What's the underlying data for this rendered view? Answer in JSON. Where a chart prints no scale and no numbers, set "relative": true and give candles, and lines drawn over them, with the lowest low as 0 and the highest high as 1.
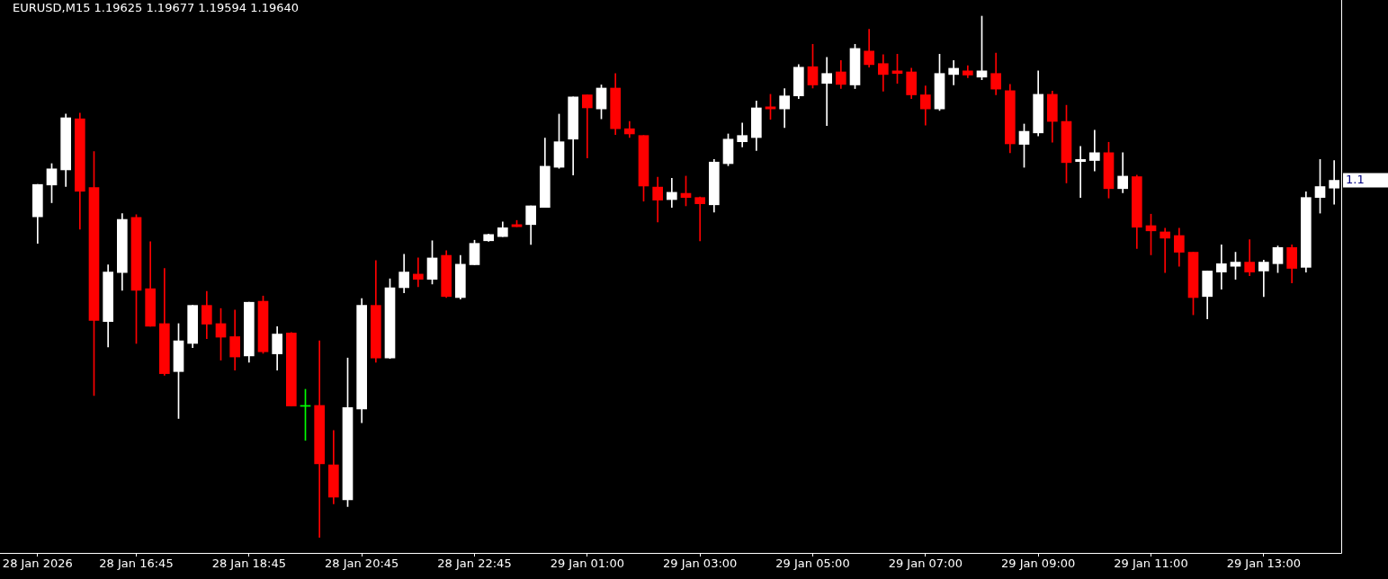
{
  "chart_data": {
    "type": "candlestick",
    "title": "EURUSD,M15 1.19625 1.19677 1.19594 1.19640",
    "relative": true,
    "categories": [
      "28 Jan 2026",
      null,
      null,
      null,
      null,
      null,
      null,
      "28 Jan 16:45",
      null,
      null,
      null,
      null,
      null,
      null,
      null,
      "28 Jan 18:45",
      null,
      null,
      null,
      null,
      null,
      null,
      null,
      "28 Jan 20:45",
      null,
      null,
      null,
      null,
      null,
      null,
      null,
      "28 Jan 22:45",
      null,
      null,
      null,
      null,
      null,
      null,
      null,
      "29 Jan 01:00",
      null,
      null,
      null,
      null,
      null,
      null,
      null,
      "29 Jan 03:00",
      null,
      null,
      null,
      null,
      null,
      null,
      null,
      "29 Jan 05:00",
      null,
      null,
      null,
      null,
      null,
      null,
      null,
      "29 Jan 07:00",
      null,
      null,
      null,
      null,
      null,
      null,
      null,
      "29 Jan 09:00",
      null,
      null,
      null,
      null,
      null,
      null,
      null,
      "29 Jan 11:00",
      null,
      null,
      null,
      null,
      null,
      null,
      null,
      "29 Jan 13:00",
      null,
      null,
      null,
      null,
      null
    ],
    "ohlc": [
      [
        0.615,
        0.677,
        0.564,
        0.677
      ],
      [
        0.676,
        0.717,
        0.642,
        0.707
      ],
      [
        0.705,
        0.812,
        0.673,
        0.805
      ],
      [
        0.803,
        0.814,
        0.591,
        0.664
      ],
      [
        0.671,
        0.74,
        0.272,
        0.416
      ],
      [
        0.414,
        0.523,
        0.365,
        0.509
      ],
      [
        0.508,
        0.621,
        0.474,
        0.61
      ],
      [
        0.614,
        0.619,
        0.372,
        0.474
      ],
      [
        0.477,
        0.567,
        0.405,
        0.405
      ],
      [
        0.41,
        0.516,
        0.311,
        0.314
      ],
      [
        0.318,
        0.41,
        0.228,
        0.377
      ],
      [
        0.372,
        0.445,
        0.364,
        0.445
      ],
      [
        0.445,
        0.472,
        0.381,
        0.409
      ],
      [
        0.41,
        0.439,
        0.34,
        0.384
      ],
      [
        0.385,
        0.436,
        0.321,
        0.346
      ],
      [
        0.348,
        0.451,
        0.336,
        0.451
      ],
      [
        0.453,
        0.463,
        0.353,
        0.356
      ],
      [
        0.352,
        0.404,
        0.321,
        0.39
      ],
      [
        0.392,
        0.393,
        0.252,
        0.252
      ],
      [
        0.253,
        0.284,
        0.186,
        0.253
      ],
      [
        0.253,
        0.377,
        0,
        0.141
      ],
      [
        0.139,
        0.205,
        0.064,
        0.077
      ],
      [
        0.072,
        0.344,
        0.059,
        0.249
      ],
      [
        0.246,
        0.458,
        0.22,
        0.445
      ],
      [
        0.445,
        0.531,
        0.336,
        0.344
      ],
      [
        0.344,
        0.496,
        0.343,
        0.479
      ],
      [
        0.479,
        0.543,
        0.469,
        0.509
      ],
      [
        0.505,
        0.536,
        0.481,
        0.495
      ],
      [
        0.495,
        0.569,
        0.486,
        0.536
      ],
      [
        0.541,
        0.55,
        0.46,
        0.462
      ],
      [
        0.46,
        0.541,
        0.457,
        0.524
      ],
      [
        0.523,
        0.57,
        0.523,
        0.564
      ],
      [
        0.569,
        0.582,
        0.568,
        0.581
      ],
      [
        0.577,
        0.605,
        0.577,
        0.594
      ],
      [
        0.6,
        0.608,
        0.596,
        0.596
      ],
      [
        0.6,
        0.636,
        0.562,
        0.636
      ],
      [
        0.633,
        0.766,
        0.633,
        0.712
      ],
      [
        0.71,
        0.812,
        0.708,
        0.759
      ],
      [
        0.764,
        0.845,
        0.695,
        0.845
      ],
      [
        0.849,
        0.849,
        0.728,
        0.824
      ],
      [
        0.822,
        0.868,
        0.803,
        0.862
      ],
      [
        0.862,
        0.89,
        0.773,
        0.784
      ],
      [
        0.784,
        0.798,
        0.767,
        0.774
      ],
      [
        0.771,
        0.771,
        0.645,
        0.674
      ],
      [
        0.672,
        0.691,
        0.605,
        0.647
      ],
      [
        0.648,
        0.689,
        0.633,
        0.662
      ],
      [
        0.66,
        0.693,
        0.636,
        0.652
      ],
      [
        0.652,
        0.653,
        0.569,
        0.64
      ],
      [
        0.638,
        0.725,
        0.624,
        0.72
      ],
      [
        0.717,
        0.774,
        0.713,
        0.764
      ],
      [
        0.759,
        0.795,
        0.749,
        0.771
      ],
      [
        0.767,
        0.837,
        0.742,
        0.824
      ],
      [
        0.826,
        0.85,
        0.802,
        0.822
      ],
      [
        0.822,
        0.861,
        0.786,
        0.847
      ],
      [
        0.847,
        0.907,
        0.842,
        0.902
      ],
      [
        0.903,
        0.946,
        0.862,
        0.868
      ],
      [
        0.871,
        0.921,
        0.79,
        0.89
      ],
      [
        0.893,
        0.915,
        0.861,
        0.869
      ],
      [
        0.868,
        0.946,
        0.861,
        0.938
      ],
      [
        0.933,
        0.975,
        0.902,
        0.907
      ],
      [
        0.909,
        0.926,
        0.856,
        0.888
      ],
      [
        0.895,
        0.927,
        0.871,
        0.89
      ],
      [
        0.893,
        0.9,
        0.842,
        0.849
      ],
      [
        0.849,
        0.866,
        0.791,
        0.822
      ],
      [
        0.822,
        0.927,
        0.819,
        0.89
      ],
      [
        0.888,
        0.915,
        0.868,
        0.9
      ],
      [
        0.895,
        0.905,
        0.882,
        0.887
      ],
      [
        0.883,
        1,
        0.878,
        0.895
      ],
      [
        0.89,
        0.929,
        0.849,
        0.86
      ],
      [
        0.857,
        0.869,
        0.738,
        0.755
      ],
      [
        0.754,
        0.793,
        0.71,
        0.779
      ],
      [
        0.776,
        0.895,
        0.77,
        0.85
      ],
      [
        0.85,
        0.856,
        0.758,
        0.798
      ],
      [
        0.798,
        0.829,
        0.68,
        0.719
      ],
      [
        0.721,
        0.75,
        0.652,
        0.725
      ],
      [
        0.723,
        0.781,
        0.703,
        0.738
      ],
      [
        0.738,
        0.758,
        0.651,
        0.669
      ],
      [
        0.669,
        0.738,
        0.661,
        0.693
      ],
      [
        0.692,
        0.695,
        0.554,
        0.595
      ],
      [
        0.598,
        0.62,
        0.542,
        0.588
      ],
      [
        0.586,
        0.593,
        0.508,
        0.574
      ],
      [
        0.579,
        0.593,
        0.52,
        0.547
      ],
      [
        0.547,
        0.547,
        0.427,
        0.46
      ],
      [
        0.462,
        0.511,
        0.419,
        0.511
      ],
      [
        0.509,
        0.561,
        0.476,
        0.525
      ],
      [
        0.52,
        0.547,
        0.495,
        0.528
      ],
      [
        0.528,
        0.571,
        0.502,
        0.509
      ],
      [
        0.511,
        0.532,
        0.462,
        0.528
      ],
      [
        0.525,
        0.559,
        0.508,
        0.556
      ],
      [
        0.556,
        0.561,
        0.488,
        0.516
      ],
      [
        0.518,
        0.663,
        0.509,
        0.652
      ],
      [
        0.652,
        0.725,
        0.622,
        0.673
      ],
      [
        0.67,
        0.723,
        0.639,
        0.685
      ]
    ],
    "colors": [
      "#ffffff",
      "#ffffff",
      "#ffffff",
      "#ff0000",
      "#ff0000",
      "#ffffff",
      "#ffffff",
      "#ff0000",
      "#ff0000",
      "#ff0000",
      "#ffffff",
      "#ffffff",
      "#ff0000",
      "#ff0000",
      "#ff0000",
      "#ffffff",
      "#ff0000",
      "#ffffff",
      "#ff0000",
      "#00ff00",
      "#ff0000",
      "#ff0000",
      "#ffffff",
      "#ffffff",
      "#ff0000",
      "#ffffff",
      "#ffffff",
      "#ff0000",
      "#ffffff",
      "#ff0000",
      "#ffffff",
      "#ffffff",
      "#ffffff",
      "#ffffff",
      "#ff0000",
      "#ffffff",
      "#ffffff",
      "#ffffff",
      "#ffffff",
      "#ff0000",
      "#ffffff",
      "#ff0000",
      "#ff0000",
      "#ff0000",
      "#ff0000",
      "#ffffff",
      "#ff0000",
      "#ff0000",
      "#ffffff",
      "#ffffff",
      "#ffffff",
      "#ffffff",
      "#ff0000",
      "#ffffff",
      "#ffffff",
      "#ff0000",
      "#ffffff",
      "#ff0000",
      "#ffffff",
      "#ff0000",
      "#ff0000",
      "#ff0000",
      "#ff0000",
      "#ff0000",
      "#ffffff",
      "#ffffff",
      "#ff0000",
      "#ffffff",
      "#ff0000",
      "#ff0000",
      "#ffffff",
      "#ffffff",
      "#ff0000",
      "#ff0000",
      "#ffffff",
      "#ffffff",
      "#ff0000",
      "#ffffff",
      "#ff0000",
      "#ff0000",
      "#ff0000",
      "#ff0000",
      "#ff0000",
      "#ffffff",
      "#ffffff",
      "#ffffff",
      "#ff0000",
      "#ffffff",
      "#ffffff",
      "#ff0000",
      "#ffffff",
      "#ffffff",
      "#ffffff"
    ],
    "annotations": [
      "1.1"
    ]
  }
}
